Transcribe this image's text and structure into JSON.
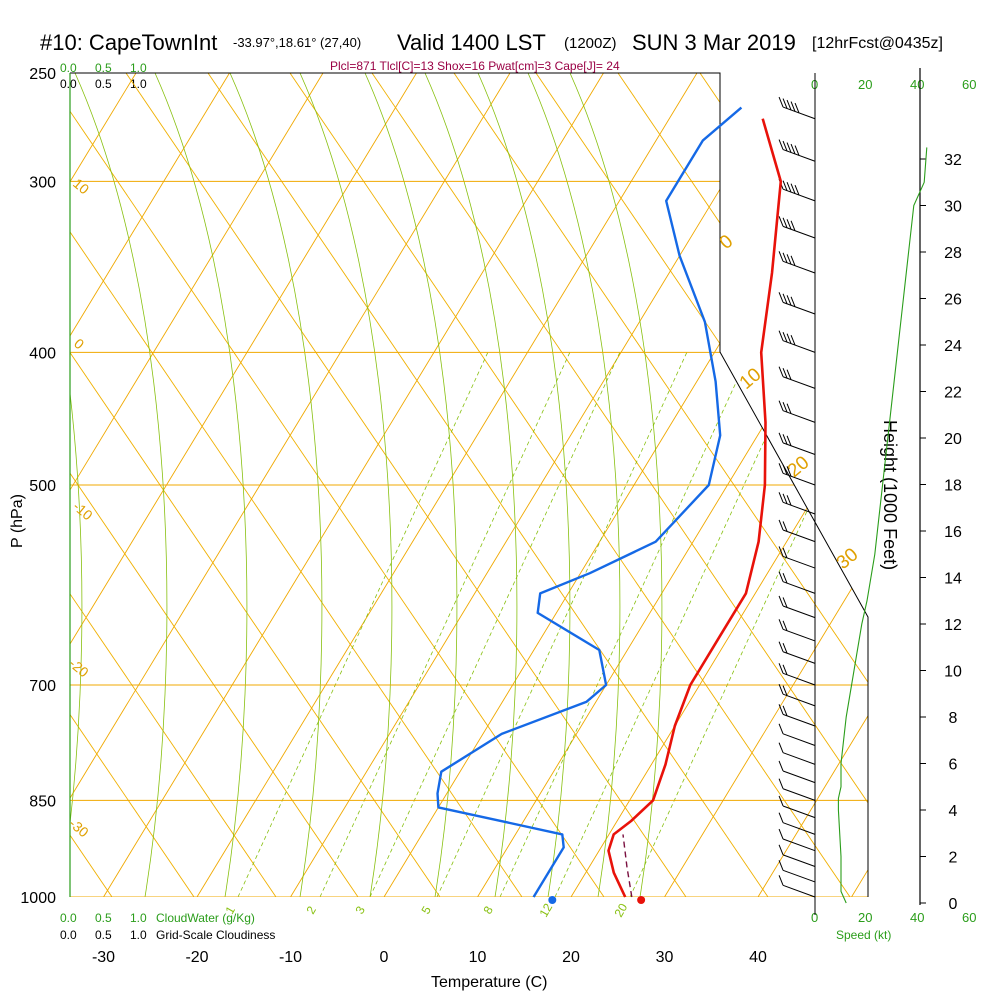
{
  "header": {
    "station": "#10: CapeTownInt",
    "coords": "-33.97°,18.61° (27,40)",
    "valid": "Valid 1400 LST",
    "zulu": "(1200Z)",
    "date": "SUN 3 Mar 2019",
    "forecast": "[12hrFcst@0435z]",
    "indices": "Plcl=871 Tlcl[C]=13 Shox=16 Pwat[cm]=3 Cape[J]= 24"
  },
  "scales": {
    "cloud_water_top": [
      "0.0",
      "0.5",
      "1.0"
    ],
    "cloudiness_top": [
      "0.0",
      "0.5",
      "1.0"
    ],
    "cloud_water_bottom": [
      "0.0",
      "0.5",
      "1.0"
    ],
    "cloud_water_label": "CloudWater (g/Kg)",
    "cloudiness_bottom": [
      "0.0",
      "0.5",
      "1.0"
    ],
    "cloudiness_label": "Grid-Scale Cloudiness",
    "speed_top": [
      "0",
      "20",
      "40",
      "60"
    ],
    "speed_bottom": [
      "0",
      "20",
      "40",
      "60"
    ],
    "speed_label": "Speed (kt)"
  },
  "colors": {
    "temperature": "#e8120a",
    "dewpoint": "#1569e6",
    "parcel": "#7a1040",
    "isotherm_isobar": "#f0a800",
    "dry_adiabat": "#f0b000",
    "moist_adiabat": "#88c010",
    "mixing_ratio": "#88c010",
    "speed": "#2a9d1a",
    "scale_text": "#2a9d1a",
    "indices_text": "#990044"
  },
  "chart_data": {
    "type": "line",
    "subtype": "skew-T log-P sounding",
    "xlabel": "Temperature (C)",
    "ylabel": "P (hPa)",
    "right_axis_label": "Height (1000 Feet)",
    "x_ticks": [
      -30,
      -20,
      -10,
      0,
      10,
      20,
      30,
      40
    ],
    "y_ticks": [
      250,
      300,
      400,
      500,
      700,
      850,
      1000
    ],
    "xlim": [
      -34,
      36
    ],
    "ylim": [
      1000,
      250
    ],
    "height_ticks": [
      0,
      2,
      4,
      6,
      8,
      10,
      12,
      14,
      16,
      18,
      20,
      22,
      24,
      26,
      28,
      30,
      32
    ],
    "dry_adiabat_labels": [
      "10",
      "0",
      "-10",
      "-20",
      "-30",
      "0",
      "10",
      "20",
      "30"
    ],
    "mixing_ratio_labels": [
      "1",
      "2",
      "3",
      "5",
      "8",
      "12",
      "20"
    ],
    "series": [
      {
        "name": "Temperature",
        "points": [
          [
            25.8,
            1000
          ],
          [
            23,
            960
          ],
          [
            21,
            925
          ],
          [
            20.5,
            900
          ],
          [
            21.5,
            880
          ],
          [
            22.5,
            850
          ],
          [
            21.5,
            800
          ],
          [
            20,
            750
          ],
          [
            19,
            700
          ],
          [
            19,
            650
          ],
          [
            19,
            600
          ],
          [
            17,
            550
          ],
          [
            14,
            500
          ],
          [
            10,
            450
          ],
          [
            5,
            400
          ],
          [
            1,
            350
          ],
          [
            -4,
            300
          ],
          [
            -10,
            270
          ]
        ]
      },
      {
        "name": "Dewpoint",
        "points": [
          [
            16,
            1000
          ],
          [
            16,
            960
          ],
          [
            16,
            920
          ],
          [
            15,
            900
          ],
          [
            0,
            860
          ],
          [
            -1,
            840
          ],
          [
            -2,
            810
          ],
          [
            2,
            760
          ],
          [
            9,
            720
          ],
          [
            10,
            700
          ],
          [
            7,
            660
          ],
          [
            -2,
            620
          ],
          [
            -3,
            600
          ],
          [
            1,
            580
          ],
          [
            6,
            550
          ],
          [
            8,
            500
          ],
          [
            6,
            460
          ],
          [
            2,
            420
          ],
          [
            -3,
            380
          ],
          [
            -10,
            340
          ],
          [
            -15,
            310
          ],
          [
            -15,
            300
          ],
          [
            -15,
            280
          ],
          [
            -13,
            265
          ]
        ]
      },
      {
        "name": "Parcel",
        "points": [
          [
            26.5,
            1000
          ],
          [
            24,
            950
          ],
          [
            21.5,
            900
          ]
        ]
      }
    ],
    "markers": [
      {
        "name": "Surface dewpoint",
        "x": 18,
        "y": 1000
      },
      {
        "name": "Surface temperature",
        "x": 27.5,
        "y": 1000
      }
    ],
    "wind_speed_profile": {
      "xlabel": "Speed (kt)",
      "xlim": [
        0,
        60
      ],
      "points": [
        [
          12,
          0
        ],
        [
          10,
          0.5
        ],
        [
          10,
          2
        ],
        [
          9,
          4
        ],
        [
          9,
          4.5
        ],
        [
          10,
          5
        ],
        [
          10,
          6
        ],
        [
          12,
          8
        ],
        [
          15,
          10
        ],
        [
          18,
          12
        ],
        [
          20,
          13
        ],
        [
          23,
          15
        ],
        [
          26,
          18
        ],
        [
          28,
          20
        ],
        [
          32,
          24
        ],
        [
          34,
          26
        ],
        [
          36,
          28
        ],
        [
          38,
          30
        ],
        [
          42,
          31
        ],
        [
          43,
          32.5
        ]
      ]
    },
    "wind_barbs": [
      {
        "p": 270,
        "speed_kt": 45
      },
      {
        "p": 290,
        "speed_kt": 45
      },
      {
        "p": 310,
        "speed_kt": 45
      },
      {
        "p": 330,
        "speed_kt": 40
      },
      {
        "p": 350,
        "speed_kt": 40
      },
      {
        "p": 375,
        "speed_kt": 35
      },
      {
        "p": 400,
        "speed_kt": 35
      },
      {
        "p": 425,
        "speed_kt": 30
      },
      {
        "p": 450,
        "speed_kt": 30
      },
      {
        "p": 475,
        "speed_kt": 30
      },
      {
        "p": 500,
        "speed_kt": 25
      },
      {
        "p": 525,
        "speed_kt": 25
      },
      {
        "p": 550,
        "speed_kt": 20
      },
      {
        "p": 575,
        "speed_kt": 20
      },
      {
        "p": 600,
        "speed_kt": 20
      },
      {
        "p": 625,
        "speed_kt": 15
      },
      {
        "p": 650,
        "speed_kt": 15
      },
      {
        "p": 675,
        "speed_kt": 15
      },
      {
        "p": 700,
        "speed_kt": 15
      },
      {
        "p": 725,
        "speed_kt": 15
      },
      {
        "p": 750,
        "speed_kt": 15
      },
      {
        "p": 775,
        "speed_kt": 10
      },
      {
        "p": 800,
        "speed_kt": 10
      },
      {
        "p": 825,
        "speed_kt": 10
      },
      {
        "p": 850,
        "speed_kt": 10
      },
      {
        "p": 875,
        "speed_kt": 10
      },
      {
        "p": 900,
        "speed_kt": 10
      },
      {
        "p": 925,
        "speed_kt": 10
      },
      {
        "p": 950,
        "speed_kt": 10
      },
      {
        "p": 975,
        "speed_kt": 10
      },
      {
        "p": 1000,
        "speed_kt": 10
      }
    ]
  }
}
